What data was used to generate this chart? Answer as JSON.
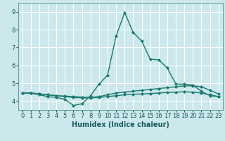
{
  "xlabel": "Humidex (Indice chaleur)",
  "bg_color": "#cce8ec",
  "grid_color": "#ffffff",
  "line_color": "#1a7a6e",
  "xlim": [
    -0.5,
    23.5
  ],
  "ylim": [
    3.5,
    9.5
  ],
  "xticks": [
    0,
    1,
    2,
    3,
    4,
    5,
    6,
    7,
    8,
    9,
    10,
    11,
    12,
    13,
    14,
    15,
    16,
    17,
    18,
    19,
    20,
    21,
    22,
    23
  ],
  "yticks": [
    4,
    5,
    6,
    7,
    8,
    9
  ],
  "series": [
    {
      "x": [
        0,
        1,
        2,
        3,
        4,
        5,
        6,
        7,
        8,
        9,
        10,
        11,
        12,
        13,
        14,
        15,
        16,
        17,
        18,
        19,
        20,
        21,
        22,
        23
      ],
      "y": [
        4.45,
        4.45,
        4.35,
        4.25,
        4.2,
        4.1,
        3.75,
        3.85,
        4.3,
        4.95,
        5.45,
        7.65,
        8.95,
        7.85,
        7.35,
        6.35,
        6.3,
        5.85,
        4.95,
        4.95,
        4.9,
        4.55,
        4.3,
        4.25
      ]
    },
    {
      "x": [
        0,
        1,
        2,
        3,
        4,
        5,
        6,
        7,
        8,
        9,
        10,
        11,
        12,
        13,
        14,
        15,
        16,
        17,
        18,
        19,
        20,
        21,
        22,
        23
      ],
      "y": [
        4.45,
        4.45,
        4.4,
        4.35,
        4.3,
        4.28,
        4.25,
        4.22,
        4.2,
        4.25,
        4.35,
        4.45,
        4.5,
        4.55,
        4.6,
        4.65,
        4.7,
        4.75,
        4.8,
        4.85,
        4.85,
        4.8,
        4.6,
        4.4
      ]
    },
    {
      "x": [
        0,
        1,
        2,
        3,
        4,
        5,
        6,
        7,
        8,
        9,
        10,
        11,
        12,
        13,
        14,
        15,
        16,
        17,
        18,
        19,
        20,
        21,
        22,
        23
      ],
      "y": [
        4.45,
        4.45,
        4.4,
        4.35,
        4.3,
        4.25,
        4.2,
        4.18,
        4.18,
        4.2,
        4.25,
        4.3,
        4.35,
        4.38,
        4.4,
        4.42,
        4.45,
        4.48,
        4.5,
        4.52,
        4.5,
        4.45,
        4.35,
        4.25
      ]
    }
  ],
  "marker": "D",
  "markersize": 2.0,
  "linewidth": 1.0,
  "xlabel_fontsize": 7,
  "tick_fontsize": 6
}
